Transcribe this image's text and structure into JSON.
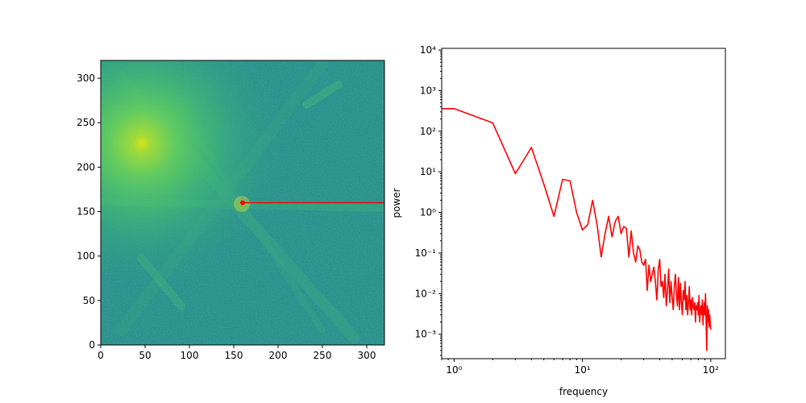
{
  "chart_data": [
    {
      "type": "heatmap",
      "title": "",
      "xlabel": "",
      "ylabel": "",
      "xlim": [
        0,
        320
      ],
      "ylim": [
        0,
        320
      ],
      "xticks": [
        0,
        50,
        100,
        150,
        200,
        250,
        300
      ],
      "yticks": [
        0,
        50,
        100,
        150,
        200,
        250,
        300
      ],
      "colormap": "viridis",
      "center": [
        160,
        160
      ],
      "overlay": {
        "type": "line",
        "color": "#ff0000",
        "x": [
          160,
          320
        ],
        "y": [
          160,
          160
        ],
        "marker_at_start": true
      }
    },
    {
      "type": "line",
      "title": "",
      "xlabel": "frequency",
      "ylabel": "power",
      "xscale": "log",
      "yscale": "log",
      "xlim": [
        0.8,
        130
      ],
      "ylim": [
        0.00025,
        11000
      ],
      "x_tick_labels": [
        "10^0",
        "10^1",
        "10^2"
      ],
      "y_tick_labels": [
        "10^-3",
        "10^-2",
        "10^-1",
        "10^0",
        "10^1",
        "10^2",
        "10^3",
        "10^4"
      ],
      "series": [
        {
          "color": "#ff0000",
          "x": [
            0.5,
            1,
            2,
            3,
            4,
            5,
            6,
            7,
            8,
            9,
            10,
            11,
            12,
            13,
            14,
            15,
            16,
            17,
            18,
            19,
            20,
            21,
            22,
            23,
            24,
            25,
            26,
            27,
            28,
            29,
            30,
            31,
            32,
            33,
            34,
            35,
            36,
            37,
            38,
            39,
            40,
            41,
            42,
            43,
            44,
            45,
            46,
            47,
            48,
            49,
            50,
            51,
            52,
            53,
            54,
            55,
            56,
            57,
            58,
            59,
            60,
            61,
            62,
            63,
            64,
            65,
            66,
            67,
            68,
            69,
            70,
            71,
            72,
            73,
            74,
            75,
            76,
            77,
            78,
            79,
            80,
            81,
            82,
            83,
            84,
            85,
            86,
            87,
            88,
            89,
            90,
            91,
            92,
            93,
            94,
            95,
            96,
            97,
            98,
            99,
            100
          ],
          "y": [
            360,
            360,
            160,
            9,
            40,
            5,
            0.8,
            6.5,
            6,
            1,
            0.37,
            0.5,
            2,
            0.5,
            0.08,
            0.3,
            0.8,
            0.25,
            0.6,
            0.8,
            0.3,
            0.45,
            0.4,
            0.08,
            0.35,
            0.1,
            0.06,
            0.15,
            0.12,
            0.06,
            0.05,
            0.07,
            0.012,
            0.05,
            0.02,
            0.03,
            0.045,
            0.02,
            0.007,
            0.04,
            0.07,
            0.015,
            0.02,
            0.008,
            0.03,
            0.005,
            0.012,
            0.04,
            0.006,
            0.02,
            0.008,
            0.004,
            0.015,
            0.03,
            0.01,
            0.005,
            0.025,
            0.004,
            0.018,
            0.006,
            0.003,
            0.012,
            0.007,
            0.02,
            0.004,
            0.009,
            0.003,
            0.006,
            0.015,
            0.004,
            0.007,
            0.003,
            0.008,
            0.005,
            0.004,
            0.006,
            0.002,
            0.005,
            0.004,
            0.006,
            0.003,
            0.009,
            0.002,
            0.004,
            0.005,
            0.003,
            0.007,
            0.0017,
            0.004,
            0.006,
            0.003,
            0.01,
            0.002,
            0.0004,
            0.005,
            0.002,
            0.004,
            0.0015,
            0.003,
            0.002,
            0.0013
          ]
        }
      ]
    }
  ]
}
